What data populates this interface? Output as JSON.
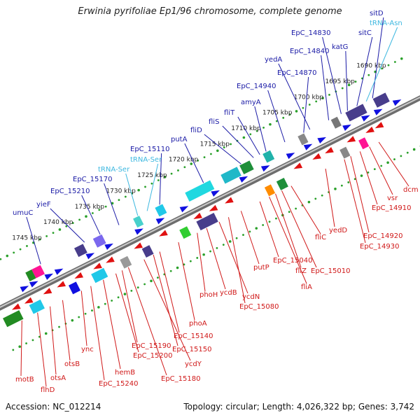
{
  "title": "Erwinia pyrifoliae Ep1/96 chromosome, complete genome",
  "footer": {
    "accession": "Accession: NC_012214",
    "summary": "Topology: circular; Length: 4,026,322 bp; Genes: 3,742"
  },
  "scale_labels": [
    "1690 kbp",
    "1695 kbp",
    "1700 kbp",
    "1705 kbp",
    "1710 kbp",
    "1715 kbp",
    "1720 kbp",
    "1725 kbp",
    "1730 kbp",
    "1735 kbp",
    "1740 kbp",
    "1745 kbp"
  ],
  "upper_labels": [
    {
      "text": "sitD",
      "kind": "gene"
    },
    {
      "text": "tRNA-Asn",
      "kind": "trna"
    },
    {
      "text": "sitC",
      "kind": "gene"
    },
    {
      "text": "EpC_14830",
      "kind": "gene"
    },
    {
      "text": "katG",
      "kind": "gene"
    },
    {
      "text": "EpC_14840",
      "kind": "gene"
    },
    {
      "text": "yedA",
      "kind": "gene"
    },
    {
      "text": "EpC_14870",
      "kind": "gene"
    },
    {
      "text": "EpC_14940",
      "kind": "gene"
    },
    {
      "text": "amyA",
      "kind": "gene"
    },
    {
      "text": "fliT",
      "kind": "gene"
    },
    {
      "text": "fliS",
      "kind": "gene"
    },
    {
      "text": "fliD",
      "kind": "gene"
    },
    {
      "text": "putA",
      "kind": "gene"
    },
    {
      "text": "EpC_15110",
      "kind": "gene"
    },
    {
      "text": "tRNA-Ser",
      "kind": "trna"
    },
    {
      "text": "tRNA-Ser",
      "kind": "trna"
    },
    {
      "text": "EpC_15170",
      "kind": "gene"
    },
    {
      "text": "EpC_15210",
      "kind": "gene"
    },
    {
      "text": "yieF",
      "kind": "gene"
    },
    {
      "text": "umuC",
      "kind": "gene"
    }
  ],
  "lower_labels": [
    "dcm",
    "vsr",
    "EpC_14910",
    "EpC_14920",
    "EpC_14930",
    "yedD",
    "fliC",
    "EpC_15010",
    "fliZ",
    "fliA",
    "EpC_15040",
    "putP",
    "EpC_15080",
    "ycdN",
    "ycdB",
    "phoH",
    "phoA",
    "EpC_15140",
    "EpC_15150",
    "ycdY",
    "EpC_15180",
    "EpC_15190",
    "EpC_15200",
    "hemB",
    "EpC_15240",
    "ync",
    "otsB",
    "otsA",
    "flhD",
    "motB"
  ],
  "colors": {
    "upper_label": "#1a1aa6",
    "trna_label": "#3db8e0",
    "lower_label": "#d01818",
    "backbone": "#8a8a8a",
    "ticks": "#2aa02a",
    "fwd_arrow": "#1010e0",
    "rev_arrow": "#e01010"
  }
}
